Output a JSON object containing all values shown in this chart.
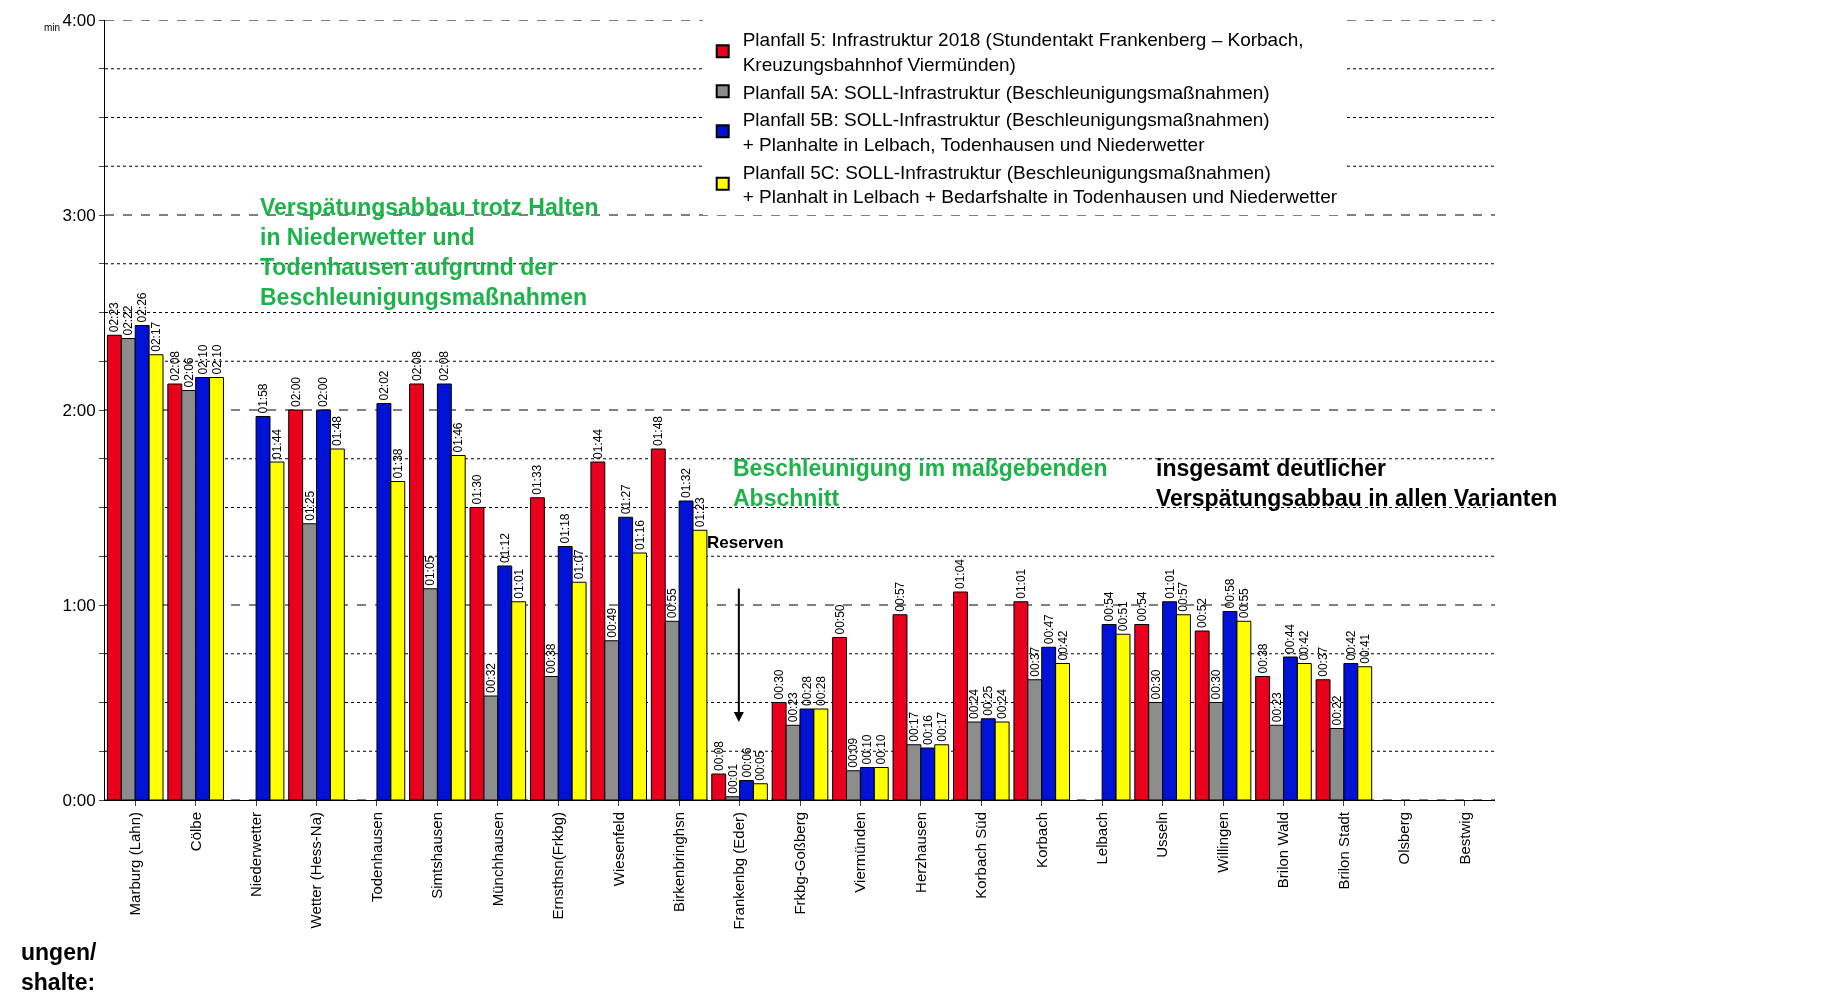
{
  "chart_data": {
    "type": "bar",
    "ylabel": "min",
    "categories": [
      "Marburg (Lahn)",
      "Cölbe",
      "Niederwetter",
      "Wetter (Hess-Na)",
      "Todenhausen",
      "Simtshausen",
      "Münchhausen",
      "Ernsthsn(Frkbg)",
      "Wiesenfeld",
      "Birkenbringhsn",
      "Frankenbg (Eder)",
      "Frkbg-Goßberg",
      "Viermünden",
      "Herzhausen",
      "Korbach Süd",
      "Korbach",
      "Lelbach",
      "Usseln",
      "Willingen",
      "Brilon Wald",
      "Brilon Stadt",
      "Olsberg",
      "Bestwig"
    ],
    "series": [
      {
        "name": "Planfall 5: Infrastruktur 2018 (Stundentakt Frankenberg – Korbach,\nKreuzungsbahnhof Viermünden)",
        "color": "#e8001c",
        "values": [
          143,
          128,
          null,
          120,
          null,
          128,
          90,
          93,
          104,
          108,
          8,
          30,
          50,
          57,
          64,
          61,
          null,
          54,
          52,
          38,
          37,
          null,
          null
        ],
        "value_labels": [
          "02:23",
          "02:08",
          null,
          "02:00",
          null,
          "02:08",
          "01:30",
          "01:33",
          "01:44",
          "01:48",
          "00:08",
          "00:30",
          "00:50",
          "00:57",
          "01:04",
          "01:01",
          null,
          "00:54",
          "00:52",
          "00:38",
          "00:37",
          null,
          null
        ]
      },
      {
        "name": "Planfall 5A: SOLL-Infrastruktur (Beschleunigungsmaßnahmen)",
        "color": "#8c8c8c",
        "values": [
          142,
          126,
          null,
          85,
          null,
          65,
          32,
          38,
          49,
          55,
          1,
          23,
          9,
          17,
          24,
          37,
          null,
          30,
          30,
          23,
          22,
          null,
          null
        ],
        "value_labels": [
          "02:22",
          "02:06",
          null,
          "01:25",
          null,
          "01:05",
          "00:32",
          "00:38",
          "00:49",
          "00:55",
          "00:01",
          "00:23",
          "00:09",
          "00:17",
          "00:24",
          "00:37",
          null,
          "00:30",
          "00:30",
          "00:23",
          "00:22",
          null,
          null
        ]
      },
      {
        "name": "Planfall 5B: SOLL-Infrastruktur (Beschleunigungsmaßnahmen)\n+ Planhalte in Lelbach, Todenhausen und Niederwetter",
        "color": "#0012d6",
        "values": [
          146,
          130,
          118,
          120,
          122,
          128,
          72,
          78,
          87,
          92,
          6,
          28,
          10,
          16,
          25,
          47,
          54,
          61,
          58,
          44,
          42,
          null,
          null
        ],
        "value_labels": [
          "02:26",
          "02:10",
          "01:58",
          "02:00",
          "02:02",
          "02:08",
          "01:12",
          "01:18",
          "01:27",
          "01:32",
          "00:06",
          "00:28",
          "00:10",
          "00:16",
          "00:25",
          "00:47",
          "00:54",
          "01:01",
          "00:58",
          "00:44",
          "00:42",
          null,
          null
        ]
      },
      {
        "name": "Planfall 5C: SOLL-Infrastruktur (Beschleunigungsmaßnahmen)\n+ Planhalt in Lelbach + Bedarfshalte in Todenhausen und Niederwetter",
        "color": "#ffff00",
        "values": [
          137,
          130,
          104,
          108,
          98,
          106,
          61,
          67,
          76,
          83,
          5,
          28,
          10,
          17,
          24,
          42,
          51,
          57,
          55,
          42,
          41,
          null,
          null
        ],
        "value_labels": [
          "02:17",
          "02:10",
          "01:44",
          "01:48",
          "01:38",
          "01:46",
          "01:01",
          "01:07",
          "01:16",
          "01:23",
          "00:05",
          "00:28",
          "00:10",
          "00:17",
          "00:24",
          "00:42",
          "00:51",
          "00:57",
          "00:55",
          "00:42",
          "00:41",
          null,
          null
        ]
      }
    ],
    "ylim": [
      0,
      240
    ],
    "yticks": [
      {
        "value": 0,
        "label": "0:00"
      },
      {
        "value": 15,
        "label": null
      },
      {
        "value": 30,
        "label": null
      },
      {
        "value": 45,
        "label": null
      },
      {
        "value": 60,
        "label": "1:00"
      },
      {
        "value": 75,
        "label": null
      },
      {
        "value": 90,
        "label": null
      },
      {
        "value": 105,
        "label": null
      },
      {
        "value": 120,
        "label": "2:00"
      },
      {
        "value": 135,
        "label": null
      },
      {
        "value": 150,
        "label": null
      },
      {
        "value": 165,
        "label": null
      },
      {
        "value": 180,
        "label": "3:00"
      },
      {
        "value": 195,
        "label": null
      },
      {
        "value": 210,
        "label": null
      },
      {
        "value": 225,
        "label": null
      },
      {
        "value": 240,
        "label": "4:00"
      }
    ],
    "grid": "y",
    "legend": "top right",
    "annotations": [
      "Verspätungsabbau trotz Halten\nin Niederwetter und\nTodenhausen aufgrund der\nBeschleunigungsmaßnahmen",
      "Beschleunigung im maßgebenden\nAbschnitt",
      "insgesamt deutlicher\nVerspätungsabbau in allen Varianten",
      "Reserven",
      "ungen/\nshalte:"
    ]
  }
}
